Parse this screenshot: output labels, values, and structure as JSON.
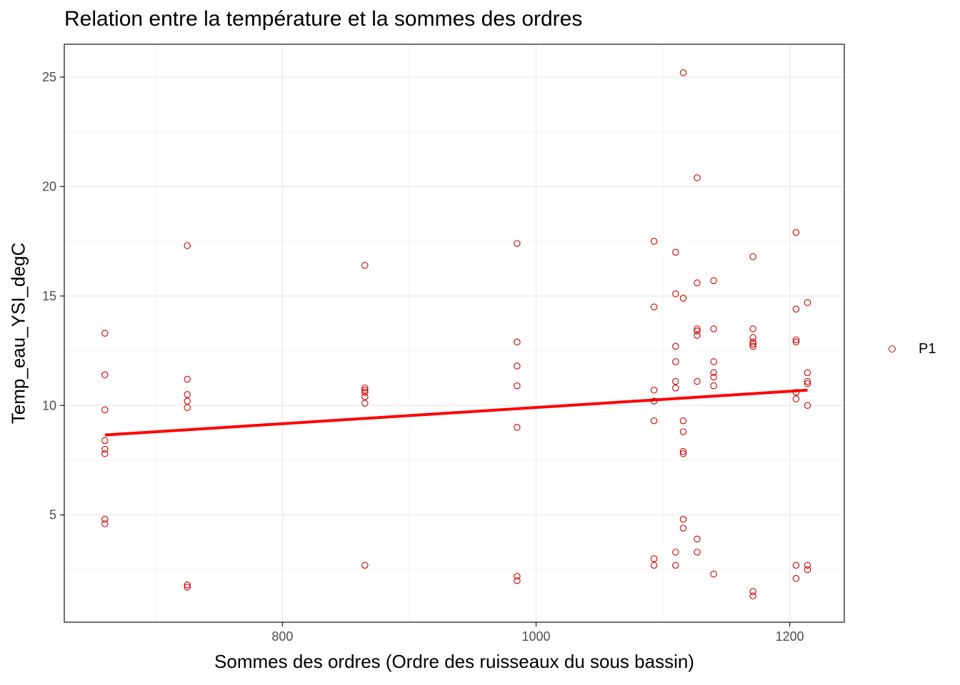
{
  "chart_data": {
    "type": "scatter",
    "title": "Relation entre la température et la sommes des ordres",
    "xlabel": "Sommes des ordres (Ordre des ruisseaux du sous bassin)",
    "ylabel": "Temp_eau_YSI_degC",
    "xlim": [
      628,
      1243
    ],
    "ylim": [
      0.1,
      26.5
    ],
    "x_ticks": [
      800,
      1000,
      1200
    ],
    "y_ticks": [
      5,
      10,
      15,
      20,
      25
    ],
    "grid": true,
    "legend_position": "right",
    "series": [
      {
        "name": "P1",
        "color": "#cc0000",
        "marker": "open-circle",
        "points": [
          [
            660,
            13.3
          ],
          [
            660,
            11.4
          ],
          [
            660,
            9.8
          ],
          [
            660,
            8.4
          ],
          [
            660,
            8.0
          ],
          [
            660,
            7.8
          ],
          [
            660,
            4.8
          ],
          [
            660,
            4.6
          ],
          [
            725,
            17.3
          ],
          [
            725,
            11.2
          ],
          [
            725,
            10.5
          ],
          [
            725,
            10.2
          ],
          [
            725,
            9.9
          ],
          [
            725,
            1.8
          ],
          [
            725,
            1.7
          ],
          [
            865,
            16.4
          ],
          [
            865,
            10.8
          ],
          [
            865,
            10.7
          ],
          [
            865,
            10.6
          ],
          [
            865,
            10.4
          ],
          [
            865,
            10.1
          ],
          [
            865,
            2.7
          ],
          [
            985,
            17.4
          ],
          [
            985,
            12.9
          ],
          [
            985,
            11.8
          ],
          [
            985,
            10.9
          ],
          [
            985,
            9.0
          ],
          [
            985,
            2.2
          ],
          [
            985,
            2.0
          ],
          [
            1093,
            17.5
          ],
          [
            1093,
            14.5
          ],
          [
            1093,
            10.7
          ],
          [
            1093,
            10.2
          ],
          [
            1093,
            9.3
          ],
          [
            1093,
            3.0
          ],
          [
            1093,
            2.7
          ],
          [
            1110,
            17.0
          ],
          [
            1110,
            15.1
          ],
          [
            1110,
            12.7
          ],
          [
            1110,
            12.0
          ],
          [
            1110,
            11.1
          ],
          [
            1110,
            10.8
          ],
          [
            1110,
            3.3
          ],
          [
            1110,
            2.7
          ],
          [
            1116,
            25.2
          ],
          [
            1116,
            14.9
          ],
          [
            1116,
            9.3
          ],
          [
            1116,
            8.8
          ],
          [
            1116,
            7.9
          ],
          [
            1116,
            7.8
          ],
          [
            1116,
            4.8
          ],
          [
            1116,
            4.4
          ],
          [
            1127,
            20.4
          ],
          [
            1127,
            15.6
          ],
          [
            1127,
            13.5
          ],
          [
            1127,
            13.4
          ],
          [
            1127,
            13.2
          ],
          [
            1127,
            11.1
          ],
          [
            1127,
            3.9
          ],
          [
            1127,
            3.3
          ],
          [
            1140,
            15.7
          ],
          [
            1140,
            13.5
          ],
          [
            1140,
            12.0
          ],
          [
            1140,
            11.5
          ],
          [
            1140,
            11.3
          ],
          [
            1140,
            10.9
          ],
          [
            1140,
            2.3
          ],
          [
            1171,
            16.8
          ],
          [
            1171,
            13.5
          ],
          [
            1171,
            13.1
          ],
          [
            1171,
            12.9
          ],
          [
            1171,
            12.8
          ],
          [
            1171,
            12.7
          ],
          [
            1171,
            1.5
          ],
          [
            1171,
            1.3
          ],
          [
            1205,
            17.9
          ],
          [
            1205,
            14.4
          ],
          [
            1205,
            13.0
          ],
          [
            1205,
            12.9
          ],
          [
            1205,
            10.6
          ],
          [
            1205,
            10.3
          ],
          [
            1205,
            2.7
          ],
          [
            1205,
            2.1
          ],
          [
            1214,
            14.7
          ],
          [
            1214,
            11.5
          ],
          [
            1214,
            11.1
          ],
          [
            1214,
            11.0
          ],
          [
            1214,
            10.0
          ],
          [
            1214,
            2.7
          ],
          [
            1214,
            2.5
          ]
        ]
      }
    ],
    "trend_line": {
      "color": "#ff0000",
      "x": [
        660,
        1214
      ],
      "y": [
        8.65,
        10.7
      ]
    }
  }
}
